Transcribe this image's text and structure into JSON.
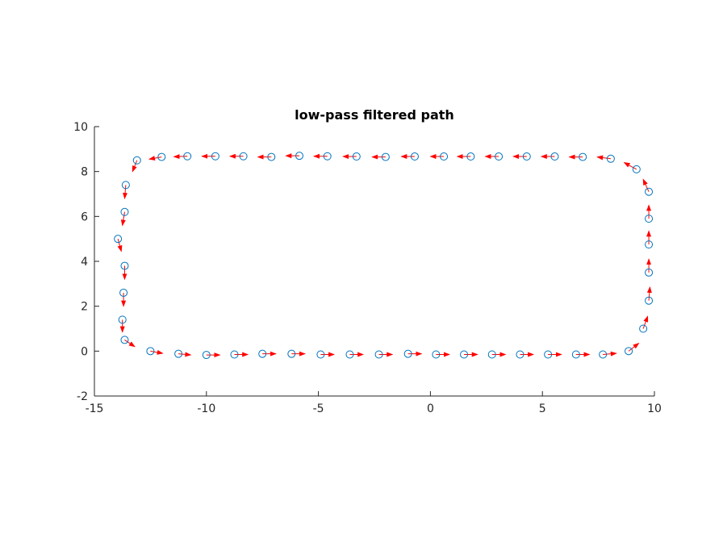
{
  "chart_data": {
    "type": "scatter",
    "title": "low-pass filtered path",
    "xlabel": "",
    "ylabel": "",
    "xlim": [
      -15,
      10
    ],
    "ylim": [
      -2,
      10
    ],
    "x_ticks": [
      -15,
      -10,
      -5,
      0,
      5,
      10
    ],
    "y_ticks": [
      -2,
      0,
      2,
      4,
      6,
      8,
      10
    ],
    "x_tick_labels": [
      "-15",
      "-10",
      "-5",
      "0",
      "5",
      "10"
    ],
    "y_tick_labels": [
      "-2",
      "0",
      "2",
      "4",
      "6",
      "8",
      "10"
    ],
    "grid": false,
    "legend": "none",
    "marker_color": "#0072bd",
    "arrow_color": "#ff0000",
    "points": [
      {
        "x": -13.1,
        "y": 8.5,
        "u": -0.2,
        "v": -0.5
      },
      {
        "x": -12.0,
        "y": 8.65,
        "u": -0.55,
        "v": -0.1
      },
      {
        "x": -10.85,
        "y": 8.68,
        "u": -0.6,
        "v": -0.02
      },
      {
        "x": -9.6,
        "y": 8.68,
        "u": -0.6,
        "v": 0.0
      },
      {
        "x": -8.35,
        "y": 8.68,
        "u": -0.6,
        "v": 0.0
      },
      {
        "x": -7.1,
        "y": 8.65,
        "u": -0.6,
        "v": 0.0
      },
      {
        "x": -5.85,
        "y": 8.7,
        "u": -0.6,
        "v": 0.0
      },
      {
        "x": -4.6,
        "y": 8.68,
        "u": -0.6,
        "v": 0.0
      },
      {
        "x": -3.3,
        "y": 8.67,
        "u": -0.6,
        "v": 0.0
      },
      {
        "x": -2.0,
        "y": 8.65,
        "u": -0.6,
        "v": 0.0
      },
      {
        "x": -0.7,
        "y": 8.67,
        "u": -0.6,
        "v": 0.0
      },
      {
        "x": 0.6,
        "y": 8.67,
        "u": -0.6,
        "v": 0.0
      },
      {
        "x": 1.8,
        "y": 8.67,
        "u": -0.6,
        "v": 0.0
      },
      {
        "x": 3.05,
        "y": 8.67,
        "u": -0.6,
        "v": 0.0
      },
      {
        "x": 4.3,
        "y": 8.67,
        "u": -0.6,
        "v": 0.0
      },
      {
        "x": 5.55,
        "y": 8.67,
        "u": -0.6,
        "v": 0.0
      },
      {
        "x": 6.8,
        "y": 8.65,
        "u": -0.6,
        "v": 0.0
      },
      {
        "x": 8.05,
        "y": 8.57,
        "u": -0.6,
        "v": 0.08
      },
      {
        "x": 9.2,
        "y": 8.1,
        "u": -0.55,
        "v": 0.3
      },
      {
        "x": 9.75,
        "y": 7.1,
        "u": -0.25,
        "v": 0.55
      },
      {
        "x": 9.75,
        "y": 5.9,
        "u": 0.0,
        "v": 0.6
      },
      {
        "x": 9.75,
        "y": 4.75,
        "u": 0.0,
        "v": 0.6
      },
      {
        "x": 9.75,
        "y": 3.5,
        "u": 0.0,
        "v": 0.6
      },
      {
        "x": 9.75,
        "y": 2.25,
        "u": 0.05,
        "v": 0.6
      },
      {
        "x": 9.5,
        "y": 1.0,
        "u": 0.2,
        "v": 0.55
      },
      {
        "x": 8.85,
        "y": 0.0,
        "u": 0.45,
        "v": 0.35
      },
      {
        "x": 7.7,
        "y": -0.15,
        "u": 0.6,
        "v": 0.05
      },
      {
        "x": 6.5,
        "y": -0.15,
        "u": 0.6,
        "v": 0.0
      },
      {
        "x": 5.25,
        "y": -0.15,
        "u": 0.6,
        "v": 0.0
      },
      {
        "x": 4.0,
        "y": -0.15,
        "u": 0.6,
        "v": 0.0
      },
      {
        "x": 2.75,
        "y": -0.15,
        "u": 0.6,
        "v": 0.0
      },
      {
        "x": 1.5,
        "y": -0.15,
        "u": 0.6,
        "v": 0.0
      },
      {
        "x": 0.25,
        "y": -0.15,
        "u": 0.6,
        "v": 0.0
      },
      {
        "x": -1.0,
        "y": -0.12,
        "u": 0.6,
        "v": 0.0
      },
      {
        "x": -2.3,
        "y": -0.15,
        "u": 0.6,
        "v": 0.0
      },
      {
        "x": -3.6,
        "y": -0.15,
        "u": 0.6,
        "v": 0.0
      },
      {
        "x": -4.9,
        "y": -0.15,
        "u": 0.6,
        "v": 0.0
      },
      {
        "x": -6.2,
        "y": -0.12,
        "u": 0.6,
        "v": 0.0
      },
      {
        "x": -7.5,
        "y": -0.12,
        "u": 0.6,
        "v": 0.0
      },
      {
        "x": -8.75,
        "y": -0.15,
        "u": 0.6,
        "v": 0.0
      },
      {
        "x": -10.0,
        "y": -0.17,
        "u": 0.6,
        "v": 0.0
      },
      {
        "x": -11.25,
        "y": -0.12,
        "u": 0.55,
        "v": -0.05
      },
      {
        "x": -12.5,
        "y": 0.0,
        "u": 0.55,
        "v": -0.1
      },
      {
        "x": -13.65,
        "y": 0.5,
        "u": 0.45,
        "v": -0.3
      },
      {
        "x": -13.75,
        "y": 1.4,
        "u": 0.0,
        "v": -0.55
      },
      {
        "x": -13.7,
        "y": 2.6,
        "u": 0.0,
        "v": -0.6
      },
      {
        "x": -13.65,
        "y": 3.8,
        "u": 0.0,
        "v": -0.6
      },
      {
        "x": -13.95,
        "y": 5.0,
        "u": 0.15,
        "v": -0.55
      },
      {
        "x": -13.65,
        "y": 6.2,
        "u": -0.1,
        "v": -0.6
      },
      {
        "x": -13.6,
        "y": 7.4,
        "u": -0.05,
        "v": -0.6
      }
    ]
  }
}
